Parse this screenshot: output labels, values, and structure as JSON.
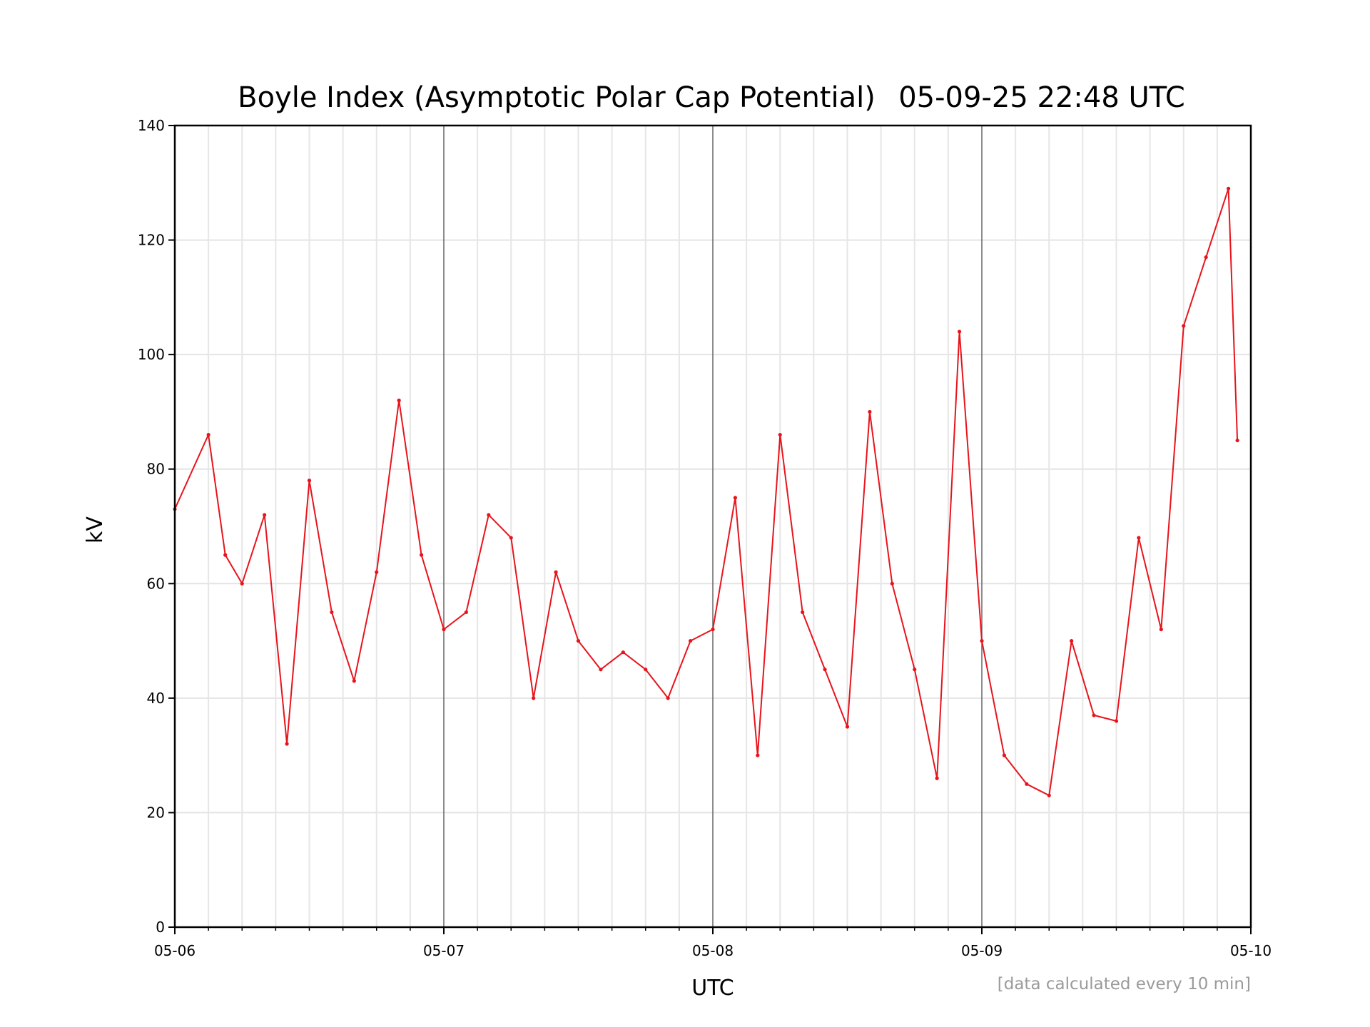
{
  "chart_data": {
    "type": "line",
    "title": "Boyle Index (Asymptotic Polar Cap Potential)",
    "timestamp": "05-09-25 22:48 UTC",
    "xlabel": "UTC",
    "ylabel": "kV",
    "note": "[data calculated every 10 min]",
    "xlim": [
      "05-06",
      "05-10"
    ],
    "ylim": [
      0,
      140
    ],
    "x_ticks": [
      "05-06",
      "05-07",
      "05-08",
      "05-09",
      "05-10"
    ],
    "y_ticks": [
      0,
      20,
      40,
      60,
      80,
      100,
      120,
      140
    ],
    "grid": true,
    "line_color": "#e8141c",
    "series": [
      {
        "x": [
          "05-06 00:00",
          "05-06 03:00",
          "05-06 04:30",
          "05-06 06:00",
          "05-06 08:00",
          "05-06 10:00",
          "05-06 12:00",
          "05-06 14:00",
          "05-06 16:00",
          "05-06 18:00",
          "05-06 20:00",
          "05-06 22:00",
          "05-07 00:00",
          "05-07 02:00",
          "05-07 04:00",
          "05-07 06:00",
          "05-07 08:00",
          "05-07 10:00",
          "05-07 12:00",
          "05-07 14:00",
          "05-07 16:00",
          "05-07 18:00",
          "05-07 20:00",
          "05-07 22:00",
          "05-08 00:00",
          "05-08 02:00",
          "05-08 04:00",
          "05-08 06:00",
          "05-08 08:00",
          "05-08 10:00",
          "05-08 12:00",
          "05-08 14:00",
          "05-08 16:00",
          "05-08 18:00",
          "05-08 20:00",
          "05-08 22:00",
          "05-09 00:00",
          "05-09 02:00",
          "05-09 04:00",
          "05-09 06:00",
          "05-09 08:00",
          "05-09 10:00",
          "05-09 12:00",
          "05-09 14:00",
          "05-09 16:00",
          "05-09 18:00",
          "05-09 20:00",
          "05-09 22:00",
          "05-09 22:48"
        ],
        "y": [
          73,
          86,
          65,
          60,
          72,
          32,
          78,
          55,
          43,
          62,
          92,
          65,
          52,
          55,
          72,
          68,
          40,
          62,
          50,
          45,
          48,
          45,
          40,
          50,
          52,
          75,
          30,
          86,
          55,
          45,
          35,
          90,
          60,
          45,
          26,
          104,
          50,
          30,
          25,
          23,
          50,
          37,
          36,
          68,
          52,
          105,
          117,
          129,
          85
        ]
      }
    ]
  }
}
